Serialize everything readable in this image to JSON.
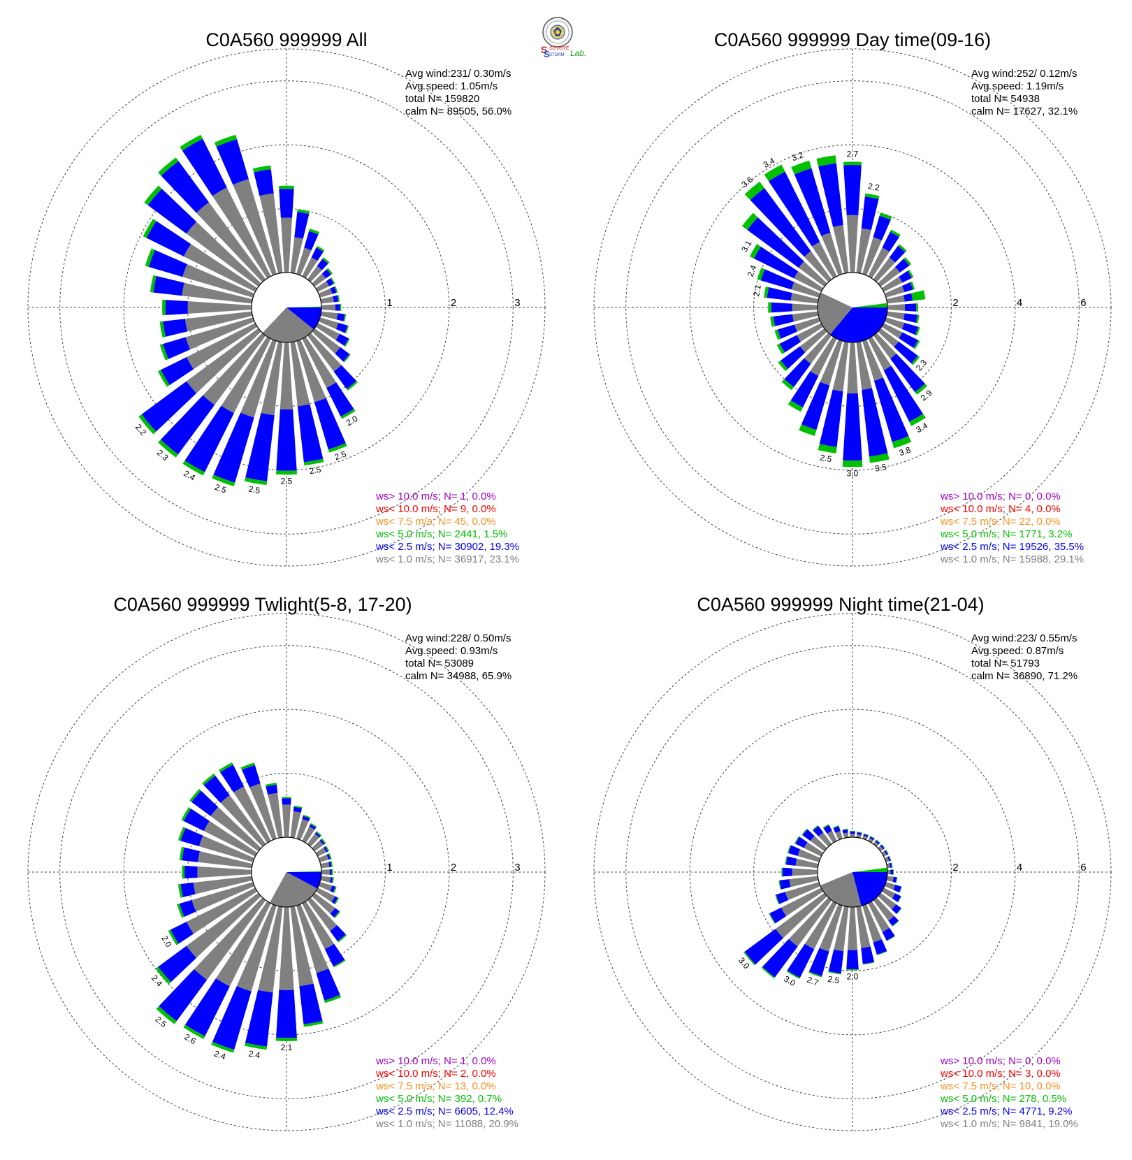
{
  "logo": {
    "letters_top": "SEVERE",
    "letters_bottom": "STORM",
    "lab": "Lab."
  },
  "chart_data": [
    {
      "type": "rose",
      "title": "C0A560 999999 All",
      "info": [
        "Avg wind:231/ 0.30m/s",
        "Avg speed: 1.05m/s",
        "total N=      159820",
        "calm N=  89505,  56.0%"
      ],
      "rings": [
        1,
        2,
        3
      ],
      "ring_labels": [
        "1",
        "2",
        "3"
      ],
      "rmax": 3.5,
      "calm": {
        "gray": 0.75,
        "blue": 0.18,
        "green": 0.01
      },
      "petals": [
        [
          0.86,
          0.45,
          0.05
        ],
        [
          0.56,
          0.4,
          0.04
        ],
        [
          0.43,
          0.27,
          0.04
        ],
        [
          0.33,
          0.17,
          0.03
        ],
        [
          0.26,
          0.14,
          0.03
        ],
        [
          0.22,
          0.1,
          0.03
        ],
        [
          0.2,
          0.08,
          0.02
        ],
        [
          0.2,
          0.07,
          0.02
        ],
        [
          0.2,
          0.07,
          0.02
        ],
        [
          0.22,
          0.07,
          0.02
        ],
        [
          0.26,
          0.11,
          0.02
        ],
        [
          0.3,
          0.15,
          0.02
        ],
        [
          0.38,
          0.16,
          0.02
        ],
        [
          0.5,
          0.18,
          0.02
        ],
        [
          0.7,
          0.34,
          0.03
        ],
        [
          0.86,
          0.5,
          0.04
        ],
        [
          1.0,
          0.77,
          0.05
        ],
        [
          1.01,
          0.88,
          0.05
        ],
        [
          1.05,
          0.96,
          0.06
        ],
        [
          1.15,
          1.04,
          0.06
        ],
        [
          1.25,
          1.06,
          0.06
        ],
        [
          1.3,
          1.03,
          0.06
        ],
        [
          1.35,
          0.96,
          0.06
        ],
        [
          1.4,
          0.87,
          0.06
        ],
        [
          1.2,
          0.45,
          0.05
        ],
        [
          1.1,
          0.37,
          0.05
        ],
        [
          1.05,
          0.35,
          0.05
        ],
        [
          1.0,
          0.35,
          0.05
        ],
        [
          1.1,
          0.45,
          0.05
        ],
        [
          1.15,
          0.55,
          0.06
        ],
        [
          1.25,
          0.65,
          0.06
        ],
        [
          1.4,
          0.75,
          0.07
        ],
        [
          1.5,
          0.8,
          0.07
        ],
        [
          1.55,
          0.85,
          0.07
        ],
        [
          1.55,
          0.65,
          0.07
        ],
        [
          1.25,
          0.38,
          0.06
        ]
      ],
      "labels": {
        "15": "2.0",
        "16": "2.5",
        "17": "2.5",
        "18": "2.5",
        "19": "2.5",
        "20": "2.5",
        "21": "2.4",
        "22": "2.3",
        "23": "2.2"
      },
      "legend": [
        {
          "text": "ws> 10.0 m/s; N=    1,  0.0%",
          "color": "#a000d0"
        },
        {
          "text": "ws< 10.0 m/s; N=    9,  0.0%",
          "color": "#ff0000"
        },
        {
          "text": "ws<  7.5 m/s; N=   45,  0.0%",
          "color": "#ff9020"
        },
        {
          "text": "ws<  5.0 m/s; N=  2441,  1.5%",
          "color": "#00c000"
        },
        {
          "text": "ws<  2.5 m/s; N= 30902, 19.3%",
          "color": "#0000ff"
        },
        {
          "text": "ws<  1.0 m/s; N= 36917, 23.1%",
          "color": "#808080"
        }
      ]
    },
    {
      "type": "rose",
      "title": "C0A560 999999 Day time(09-16)",
      "info": [
        "Avg wind:252/ 0.12m/s",
        "Avg speed: 1.19m/s",
        "total N=      54938",
        "calm N=  17627,  32.1%"
      ],
      "rings": [
        2,
        4,
        6
      ],
      "ring_labels": [
        "2",
        "4",
        "6"
      ],
      "rmax": 7,
      "calm": {
        "gray": 0.6,
        "blue": 0.6,
        "green": 0.05
      },
      "petals": [
        [
          1.8,
          1.57,
          0.1
        ],
        [
          1.4,
          1.0,
          0.1
        ],
        [
          1.2,
          0.7,
          0.1
        ],
        [
          1.0,
          0.55,
          0.08
        ],
        [
          0.85,
          0.45,
          0.07
        ],
        [
          0.75,
          0.37,
          0.07
        ],
        [
          0.65,
          0.33,
          0.06
        ],
        [
          0.6,
          0.28,
          0.06
        ],
        [
          0.55,
          0.25,
          0.4
        ],
        [
          0.55,
          0.35,
          0.06
        ],
        [
          0.55,
          0.4,
          0.06
        ],
        [
          0.6,
          0.45,
          0.06
        ],
        [
          0.65,
          0.55,
          0.06
        ],
        [
          0.7,
          0.75,
          0.07
        ],
        [
          0.9,
          1.3,
          0.1
        ],
        [
          1.1,
          1.8,
          0.15
        ],
        [
          1.3,
          2.0,
          0.2
        ],
        [
          1.5,
          2.1,
          0.2
        ],
        [
          1.6,
          2.1,
          0.2
        ],
        [
          1.55,
          1.75,
          0.2
        ],
        [
          1.45,
          1.45,
          0.2
        ],
        [
          1.3,
          1.1,
          0.15
        ],
        [
          1.1,
          0.9,
          0.12
        ],
        [
          0.95,
          0.75,
          0.1
        ],
        [
          0.85,
          0.6,
          0.1
        ],
        [
          0.8,
          0.55,
          0.1
        ],
        [
          0.8,
          0.6,
          0.1
        ],
        [
          0.8,
          0.65,
          0.1
        ],
        [
          0.85,
          0.75,
          0.1
        ],
        [
          0.9,
          1.0,
          0.12
        ],
        [
          0.95,
          1.4,
          0.15
        ],
        [
          1.0,
          2.0,
          0.2
        ],
        [
          1.1,
          2.45,
          0.25
        ],
        [
          1.2,
          2.45,
          0.25
        ],
        [
          1.35,
          2.1,
          0.25
        ],
        [
          1.5,
          1.95,
          0.25
        ]
      ],
      "labels": {
        "0": "2.7",
        "1": "2.2",
        "13": "2.3",
        "14": "2.9",
        "15": "3.4",
        "16": "3.8",
        "17": "3.5",
        "18": "3.0",
        "19": "2.5",
        "28": "2.1",
        "29": "2.4",
        "30": "3.1",
        "32": "3.6",
        "33": "3.4",
        "34": "3.2"
      },
      "legend": [
        {
          "text": "ws> 10.0 m/s; N=    0,  0.0%",
          "color": "#a000d0"
        },
        {
          "text": "ws< 10.0 m/s; N=    4,  0.0%",
          "color": "#ff0000"
        },
        {
          "text": "ws<  7.5 m/s; N=   22,  0.0%",
          "color": "#ff9020"
        },
        {
          "text": "ws<  5.0 m/s; N=  1771,  3.2%",
          "color": "#00c000"
        },
        {
          "text": "ws<  2.5 m/s; N= 19526, 35.5%",
          "color": "#0000ff"
        },
        {
          "text": "ws<  1.0 m/s; N= 15988, 29.1%",
          "color": "#808080"
        }
      ]
    },
    {
      "type": "rose",
      "title": "C0A560 999999 Twlight(5-8, 17-20)",
      "info": [
        "Avg wind:228/ 0.50m/s",
        "Avg speed: 0.93m/s",
        "total N=      53089",
        "calm N=  34988,  65.9%"
      ],
      "rings": [
        1,
        2,
        3
      ],
      "ring_labels": [
        "1",
        "2",
        "3"
      ],
      "rmax": 3.5,
      "calm": {
        "gray": 0.72,
        "blue": 0.13,
        "green": 0.01
      },
      "petals": [
        [
          0.51,
          0.1,
          0.02
        ],
        [
          0.41,
          0.07,
          0.02
        ],
        [
          0.32,
          0.05,
          0.02
        ],
        [
          0.25,
          0.04,
          0.02
        ],
        [
          0.2,
          0.03,
          0.02
        ],
        [
          0.17,
          0.03,
          0.02
        ],
        [
          0.15,
          0.03,
          0.02
        ],
        [
          0.14,
          0.03,
          0.02
        ],
        [
          0.13,
          0.03,
          0.02
        ],
        [
          0.13,
          0.03,
          0.02
        ],
        [
          0.15,
          0.03,
          0.02
        ],
        [
          0.2,
          0.05,
          0.02
        ],
        [
          0.3,
          0.05,
          0.02
        ],
        [
          0.4,
          0.08,
          0.02
        ],
        [
          0.6,
          0.2,
          0.02
        ],
        [
          0.8,
          0.3,
          0.02
        ],
        [
          1.1,
          0.45,
          0.04
        ],
        [
          1.25,
          0.6,
          0.04
        ],
        [
          1.3,
          0.75,
          0.05
        ],
        [
          1.35,
          0.85,
          0.05
        ],
        [
          1.4,
          0.95,
          0.05
        ],
        [
          1.45,
          0.87,
          0.05
        ],
        [
          1.55,
          0.8,
          0.06
        ],
        [
          1.4,
          0.55,
          0.05
        ],
        [
          1.2,
          0.28,
          0.04
        ],
        [
          1.0,
          0.2,
          0.04
        ],
        [
          0.92,
          0.2,
          0.04
        ],
        [
          0.85,
          0.2,
          0.04
        ],
        [
          0.85,
          0.25,
          0.04
        ],
        [
          0.88,
          0.3,
          0.04
        ],
        [
          0.9,
          0.35,
          0.04
        ],
        [
          0.93,
          0.37,
          0.04
        ],
        [
          0.95,
          0.38,
          0.04
        ],
        [
          0.95,
          0.38,
          0.04
        ],
        [
          0.9,
          0.3,
          0.04
        ],
        [
          0.7,
          0.13,
          0.03
        ]
      ],
      "labels": {
        "18": "2.1",
        "19": "2.4",
        "20": "2.4",
        "21": "2.6",
        "22": "2.5",
        "23": "2.4",
        "24": "2.0"
      },
      "legend": [
        {
          "text": "ws> 10.0 m/s; N=    1,  0.0%",
          "color": "#a000d0"
        },
        {
          "text": "ws< 10.0 m/s; N=    2,  0.0%",
          "color": "#ff0000"
        },
        {
          "text": "ws<  7.5 m/s; N=   13,  0.0%",
          "color": "#ff9020"
        },
        {
          "text": "ws<  5.0 m/s; N=   392,  0.7%",
          "color": "#00c000"
        },
        {
          "text": "ws<  2.5 m/s; N=  6605, 12.4%",
          "color": "#0000ff"
        },
        {
          "text": "ws<  1.0 m/s; N= 11088, 20.9%",
          "color": "#808080"
        }
      ]
    },
    {
      "type": "rose",
      "title": "C0A560 999999 Night time(21-04)",
      "info": [
        "Avg wind:223/ 0.55m/s",
        "Avg speed: 0.87m/s",
        "total N=      51793",
        "calm N=  36890,  71.2%"
      ],
      "rings": [
        2,
        4,
        6
      ],
      "ring_labels": [
        "2",
        "4",
        "6"
      ],
      "rmax": 7,
      "calm": {
        "gray": 0.65,
        "blue": 0.35,
        "green": 0.05
      },
      "petals": [
        [
          0.1,
          0.08,
          0.02
        ],
        [
          0.1,
          0.06,
          0.02
        ],
        [
          0.1,
          0.05,
          0.02
        ],
        [
          0.1,
          0.05,
          0.02
        ],
        [
          0.1,
          0.05,
          0.02
        ],
        [
          0.1,
          0.05,
          0.02
        ],
        [
          0.1,
          0.05,
          0.02
        ],
        [
          0.1,
          0.05,
          0.02
        ],
        [
          0.1,
          0.05,
          0.02
        ],
        [
          0.1,
          0.08,
          0.02
        ],
        [
          0.2,
          0.1,
          0.02
        ],
        [
          0.3,
          0.2,
          0.02
        ],
        [
          0.4,
          0.2,
          0.02
        ],
        [
          0.6,
          0.2,
          0.02
        ],
        [
          0.8,
          0.2,
          0.02
        ],
        [
          1.0,
          0.3,
          0.02
        ],
        [
          1.2,
          0.4,
          0.02
        ],
        [
          1.3,
          0.5,
          0.02
        ],
        [
          1.35,
          0.6,
          0.03
        ],
        [
          1.4,
          0.7,
          0.03
        ],
        [
          1.5,
          0.8,
          0.04
        ],
        [
          1.6,
          1.0,
          0.04
        ],
        [
          1.8,
          1.2,
          0.04
        ],
        [
          1.9,
          1.2,
          0.04
        ],
        [
          1.4,
          0.4,
          0.03
        ],
        [
          1.1,
          0.3,
          0.03
        ],
        [
          0.9,
          0.3,
          0.03
        ],
        [
          0.8,
          0.3,
          0.03
        ],
        [
          0.7,
          0.3,
          0.03
        ],
        [
          0.7,
          0.3,
          0.03
        ],
        [
          0.6,
          0.3,
          0.03
        ],
        [
          0.55,
          0.3,
          0.03
        ],
        [
          0.45,
          0.25,
          0.03
        ],
        [
          0.35,
          0.2,
          0.03
        ],
        [
          0.25,
          0.15,
          0.03
        ],
        [
          0.15,
          0.1,
          0.02
        ]
      ],
      "labels": {
        "18": "2.0",
        "19": "2.5",
        "20": "2.7",
        "21": "3.0",
        "23": "3.0"
      },
      "legend": [
        {
          "text": "ws> 10.0 m/s; N=    0,  0.0%",
          "color": "#a000d0"
        },
        {
          "text": "ws< 10.0 m/s; N=    3,  0.0%",
          "color": "#ff0000"
        },
        {
          "text": "ws<  7.5 m/s; N=   10,  0.0%",
          "color": "#ff9020"
        },
        {
          "text": "ws<  5.0 m/s; N=   278,  0.5%",
          "color": "#00c000"
        },
        {
          "text": "ws<  2.5 m/s; N=  4771,  9.2%",
          "color": "#0000ff"
        },
        {
          "text": "ws<  1.0 m/s; N=  9841, 19.0%",
          "color": "#808080"
        }
      ]
    }
  ]
}
